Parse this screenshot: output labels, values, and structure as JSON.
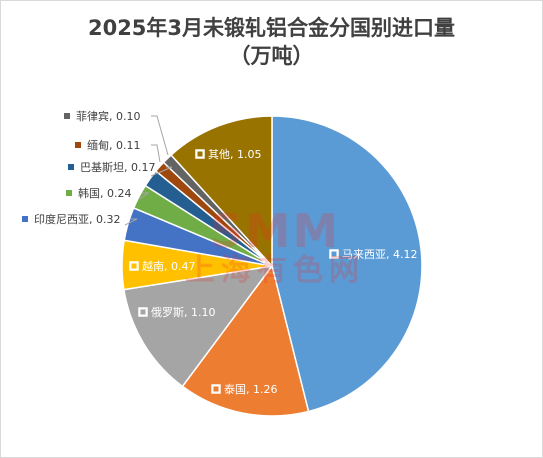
{
  "chart_data": {
    "type": "pie",
    "title_line1": "2025年3月未锻轧铝合金分国别进口量",
    "title_line2": "（万吨）",
    "slices": [
      {
        "label": "马来西亚",
        "value": 4.12,
        "value_text": "4.12",
        "color": "#5b9bd5"
      },
      {
        "label": "泰国",
        "value": 1.26,
        "value_text": "1.26",
        "color": "#ed7d31"
      },
      {
        "label": "俄罗斯",
        "value": 1.1,
        "value_text": "1.10",
        "color": "#a5a5a5"
      },
      {
        "label": "越南",
        "value": 0.47,
        "value_text": "0.47",
        "color": "#ffc000"
      },
      {
        "label": "印度尼西亚",
        "value": 0.32,
        "value_text": "0.32",
        "color": "#4472c4"
      },
      {
        "label": "韩国",
        "value": 0.24,
        "value_text": "0.24",
        "color": "#70ad47"
      },
      {
        "label": "巴基斯坦",
        "value": 0.17,
        "value_text": "0.17",
        "color": "#255e91"
      },
      {
        "label": "缅甸",
        "value": 0.11,
        "value_text": "0.11",
        "color": "#9e480e"
      },
      {
        "label": "菲律宾",
        "value": 0.1,
        "value_text": "0.10",
        "color": "#636363"
      },
      {
        "label": "其他",
        "value": 1.05,
        "value_text": "1.05",
        "color": "#997300"
      }
    ]
  },
  "watermark": {
    "line1": "SMM",
    "line2": "上海有色网"
  }
}
